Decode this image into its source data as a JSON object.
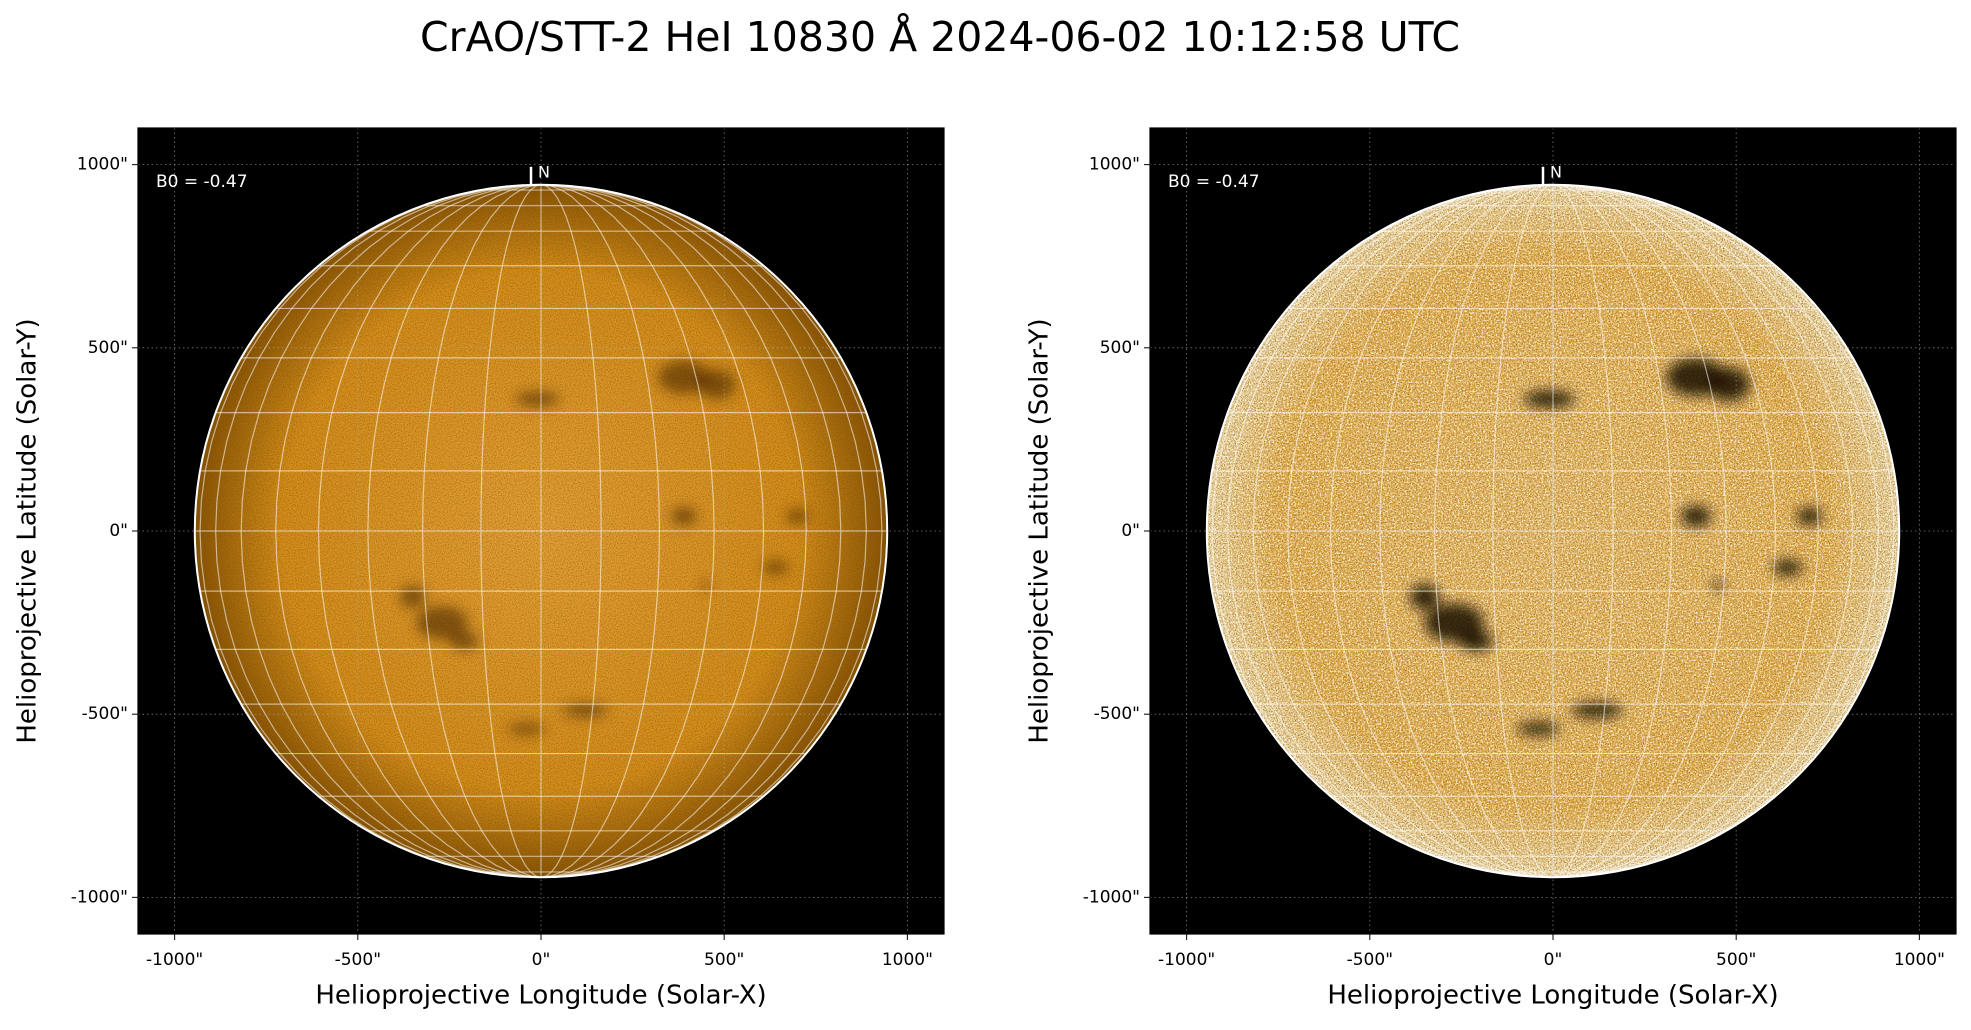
{
  "title": "CrAO/STT-2 HeI 10830 Å 2024-06-02 10:12:58 UTC",
  "chart_data": [
    {
      "type": "image",
      "xlabel": "Helioprojective Longitude (Solar-X)",
      "ylabel": "Helioprojective Latitude (Solar-Y)",
      "annotation": "B0 = -0.47",
      "north_label": "N",
      "disk_radius": 945,
      "xlim": [
        -1100,
        1100
      ],
      "ylim": [
        -1100,
        1100
      ],
      "xticks": [
        {
          "value": -1000,
          "label": "-1000\""
        },
        {
          "value": -500,
          "label": "-500\""
        },
        {
          "value": 0,
          "label": "0\""
        },
        {
          "value": 500,
          "label": "500\""
        },
        {
          "value": 1000,
          "label": "1000\""
        }
      ],
      "yticks": [
        {
          "value": -1000,
          "label": "-1000\""
        },
        {
          "value": -500,
          "label": "-500\""
        },
        {
          "value": 0,
          "label": "0\""
        },
        {
          "value": 500,
          "label": "500\""
        },
        {
          "value": 1000,
          "label": "1000\""
        }
      ],
      "grid": true
    },
    {
      "type": "image",
      "xlabel": "Helioprojective Longitude (Solar-X)",
      "ylabel": "Helioprojective Latitude (Solar-Y)",
      "annotation": "B0 = -0.47",
      "north_label": "N",
      "disk_radius": 945,
      "xlim": [
        -1100,
        1100
      ],
      "ylim": [
        -1100,
        1100
      ],
      "xticks": [
        {
          "value": -1000,
          "label": "-1000\""
        },
        {
          "value": -500,
          "label": "-500\""
        },
        {
          "value": 0,
          "label": "0\""
        },
        {
          "value": 500,
          "label": "500\""
        },
        {
          "value": 1000,
          "label": "1000\""
        }
      ],
      "yticks": [
        {
          "value": -1000,
          "label": "-1000\""
        },
        {
          "value": -500,
          "label": "-500\""
        },
        {
          "value": 0,
          "label": "0\""
        },
        {
          "value": 500,
          "label": "500\""
        },
        {
          "value": 1000,
          "label": "1000\""
        }
      ],
      "grid": true
    }
  ]
}
